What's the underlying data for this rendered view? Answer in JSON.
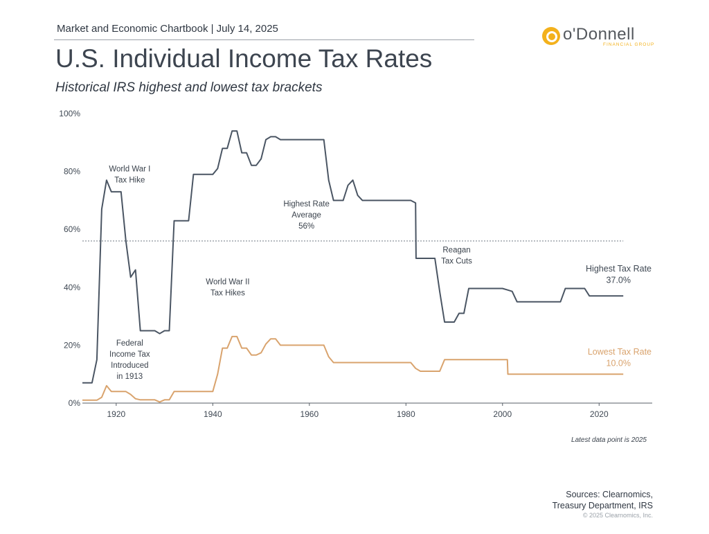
{
  "header": {
    "chartbook": "Market and Economic Chartbook | July 14, 2025",
    "title": "U.S. Individual Income Tax Rates",
    "subtitle": "Historical IRS highest and lowest tax brackets"
  },
  "logo": {
    "name": "o'Donnell",
    "tagline": "FINANCIAL GROUP",
    "color": "#f3b11c"
  },
  "chart_data": {
    "type": "line",
    "title": "U.S. Individual Income Tax Rates",
    "subtitle": "Historical IRS highest and lowest tax brackets",
    "xlabel": "",
    "ylabel": "",
    "xlim": [
      1913,
      2031
    ],
    "ylim": [
      0,
      100
    ],
    "x_ticks": [
      1920,
      1940,
      1960,
      1980,
      2000,
      2020
    ],
    "y_ticks": [
      0,
      20,
      40,
      60,
      80,
      100
    ],
    "y_tick_labels": [
      "0%",
      "20%",
      "40%",
      "60%",
      "80%",
      "100%"
    ],
    "grid": false,
    "series": [
      {
        "name": "Highest Tax Rate",
        "color": "#4a5563",
        "points": [
          [
            1913,
            7
          ],
          [
            1915,
            7
          ],
          [
            1916,
            15
          ],
          [
            1917,
            67
          ],
          [
            1918,
            77
          ],
          [
            1919,
            73
          ],
          [
            1921,
            73
          ],
          [
            1922,
            56
          ],
          [
            1923,
            43.5
          ],
          [
            1924,
            46
          ],
          [
            1925,
            25
          ],
          [
            1928,
            25
          ],
          [
            1929,
            24
          ],
          [
            1930,
            25
          ],
          [
            1931,
            25
          ],
          [
            1932,
            63
          ],
          [
            1935,
            63
          ],
          [
            1936,
            79
          ],
          [
            1940,
            79
          ],
          [
            1941,
            81
          ],
          [
            1942,
            88
          ],
          [
            1943,
            88
          ],
          [
            1944,
            94
          ],
          [
            1945,
            94
          ],
          [
            1946,
            86.45
          ],
          [
            1947,
            86.45
          ],
          [
            1948,
            82.13
          ],
          [
            1949,
            82.13
          ],
          [
            1950,
            84.36
          ],
          [
            1951,
            91
          ],
          [
            1952,
            92
          ],
          [
            1953,
            92
          ],
          [
            1954,
            91
          ],
          [
            1963,
            91
          ],
          [
            1964,
            77
          ],
          [
            1965,
            70
          ],
          [
            1967,
            70
          ],
          [
            1968,
            75.25
          ],
          [
            1969,
            77
          ],
          [
            1970,
            71.75
          ],
          [
            1971,
            70
          ],
          [
            1981,
            70
          ],
          [
            1982,
            69.13
          ],
          [
            1982.1,
            50
          ],
          [
            1986,
            50
          ],
          [
            1987,
            38.5
          ],
          [
            1988,
            28
          ],
          [
            1990,
            28
          ],
          [
            1991,
            31
          ],
          [
            1992,
            31
          ],
          [
            1993,
            39.6
          ],
          [
            2000,
            39.6
          ],
          [
            2001,
            39.1
          ],
          [
            2002,
            38.6
          ],
          [
            2003,
            35
          ],
          [
            2012,
            35
          ],
          [
            2013,
            39.6
          ],
          [
            2017,
            39.6
          ],
          [
            2018,
            37
          ],
          [
            2025,
            37
          ]
        ]
      },
      {
        "name": "Lowest Tax Rate",
        "color": "#d9a36d",
        "points": [
          [
            1913,
            1
          ],
          [
            1916,
            1
          ],
          [
            1917,
            2
          ],
          [
            1918,
            6
          ],
          [
            1919,
            4
          ],
          [
            1922,
            4
          ],
          [
            1923,
            3
          ],
          [
            1924,
            1.5
          ],
          [
            1925,
            1.13
          ],
          [
            1928,
            1.13
          ],
          [
            1929,
            0.38
          ],
          [
            1930,
            1.13
          ],
          [
            1931,
            1.13
          ],
          [
            1932,
            4
          ],
          [
            1940,
            4
          ],
          [
            1941,
            10
          ],
          [
            1942,
            19
          ],
          [
            1943,
            19
          ],
          [
            1944,
            23
          ],
          [
            1945,
            23
          ],
          [
            1946,
            19
          ],
          [
            1947,
            19
          ],
          [
            1948,
            16.6
          ],
          [
            1949,
            16.6
          ],
          [
            1950,
            17.4
          ],
          [
            1951,
            20.4
          ],
          [
            1952,
            22.2
          ],
          [
            1953,
            22.2
          ],
          [
            1954,
            20
          ],
          [
            1963,
            20
          ],
          [
            1964,
            16
          ],
          [
            1965,
            14
          ],
          [
            1981,
            14
          ],
          [
            1982,
            12
          ],
          [
            1983,
            11
          ],
          [
            1987,
            11
          ],
          [
            1988,
            15
          ],
          [
            2000,
            15
          ],
          [
            2001,
            15
          ],
          [
            2001.1,
            10
          ],
          [
            2025,
            10
          ]
        ]
      }
    ],
    "reference_lines": [
      {
        "label": "Highest Rate Average 56%",
        "value": 56
      }
    ],
    "end_labels": [
      {
        "series": "Highest Tax Rate",
        "label": "Highest Tax Rate",
        "value_text": "37.0%"
      },
      {
        "series": "Lowest Tax Rate",
        "label": "Lowest Tax Rate",
        "value_text": "10.0%"
      }
    ],
    "annotations": [
      {
        "lines": [
          "World War I",
          "Tax Hike"
        ]
      },
      {
        "lines": [
          "Highest Rate",
          "Average",
          "56%"
        ]
      },
      {
        "lines": [
          "World War II",
          "Tax Hikes"
        ]
      },
      {
        "lines": [
          "Reagan",
          "Tax Cuts"
        ]
      },
      {
        "lines": [
          "Federal",
          "Income Tax",
          "Introduced",
          "in 1913"
        ]
      }
    ]
  },
  "footer": {
    "note": "Latest data point is 2025",
    "sources_line1": "Sources: Clearnomics,",
    "sources_line2": "Treasury Department, IRS",
    "copyright": "© 2025 Clearnomics, Inc."
  }
}
